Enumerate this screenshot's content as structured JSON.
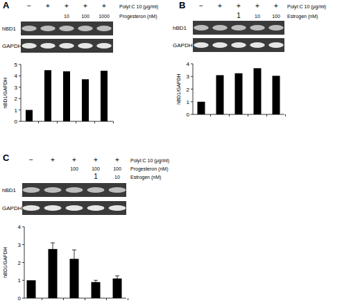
{
  "chart_data": [
    {
      "type": "bar",
      "title": "A",
      "y_label": "hBD1/GAPDH",
      "gel_labels": [
        "hBD1",
        "GAPDH"
      ],
      "treatments": [
        {
          "label": "PolyI:C 10 (μg/ml)",
          "cells": [
            "−",
            "+",
            "+",
            "+",
            "+"
          ]
        },
        {
          "label": "Progesteron (nM)",
          "cells": [
            null,
            null,
            "10",
            "100",
            "1000"
          ]
        }
      ],
      "categories": [
        null,
        null,
        null,
        null,
        null
      ],
      "values": [
        1,
        4.5,
        4.4,
        3.7,
        4.45
      ],
      "color": "#000000",
      "ylim": [
        0,
        5
      ],
      "yticks": [
        0,
        1,
        2,
        3,
        4,
        5
      ],
      "grid": false
    },
    {
      "type": "bar",
      "title": "B",
      "y_label": "hBD1/GAPDH",
      "gel_labels": [
        "hBD1",
        "GAPDH"
      ],
      "treatments": [
        {
          "label": "PolyI:C 10 (μg/ml)",
          "cells": [
            "−",
            "+",
            "+",
            "+",
            "+"
          ]
        },
        {
          "label": "Estrogen (nM)",
          "cells": [
            null,
            null,
            "1",
            "10",
            "100"
          ]
        }
      ],
      "categories": [
        null,
        null,
        null,
        null,
        null
      ],
      "values": [
        1,
        3.1,
        3.25,
        3.65,
        3.05
      ],
      "color": "#000000",
      "ylim": [
        0,
        4
      ],
      "yticks": [
        0,
        1,
        2,
        3,
        4
      ],
      "grid": false
    },
    {
      "type": "bar",
      "title": "C",
      "y_label": "hBD1/GAPDH",
      "gel_labels": [
        "hBD1",
        "GAPDH"
      ],
      "treatments": [
        {
          "label": "PolyI:C 10 (μg/ml)",
          "cells": [
            "−",
            "+",
            "+",
            "+",
            "+"
          ]
        },
        {
          "label": "Progesteron (nM)",
          "cells": [
            null,
            null,
            "100",
            "100",
            "100"
          ]
        },
        {
          "label": "Estrogen (nM)",
          "cells": [
            null,
            null,
            null,
            "1",
            "10"
          ]
        }
      ],
      "categories": [
        null,
        null,
        null,
        null,
        null
      ],
      "values": [
        1,
        2.75,
        2.2,
        0.9,
        1.1
      ],
      "errors": [
        null,
        0.35,
        0.5,
        0.1,
        0.15
      ],
      "color": "#000000",
      "ylim": [
        0,
        4
      ],
      "yticks": [
        0,
        1,
        2,
        3,
        4
      ],
      "grid": false
    }
  ]
}
